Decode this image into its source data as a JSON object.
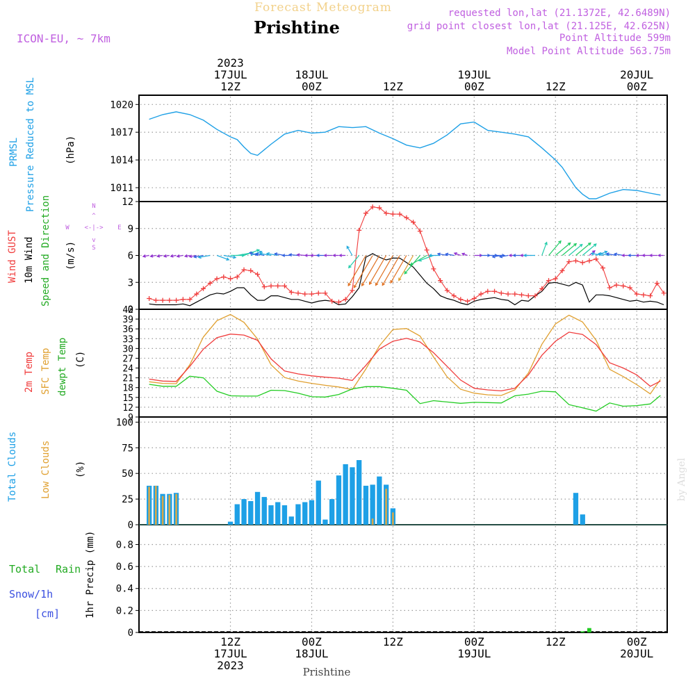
{
  "header": {
    "overline": "Forecast Meteogram",
    "location": "Prishtine",
    "model": "ICON-EU, ~ 7km",
    "requested": "requested lon,lat (21.1372E, 42.6489N)",
    "grid_point": "grid point closest lon,lat (21.125E, 42.625N)",
    "point_alt": "Point Altitude 599m",
    "model_alt": "Model Point Altitude 563.75m",
    "bottom_label": "Prishtine",
    "watermark": "by Angel"
  },
  "colors": {
    "pressure": "#1ea0e6",
    "gust": "#f03c3c",
    "wind": "#000000",
    "temp": "#f03c3c",
    "sfc": "#e0a030",
    "dew": "#22cc22",
    "total_cloud": "#1ea0e6",
    "low_cloud": "#d6a84a",
    "rain": "#22cc22",
    "snow": "#3a4fe0",
    "label_purple": "#c060e0",
    "grid": "#999999"
  },
  "time_axis": {
    "top": [
      {
        "h": 12,
        "lines": [
          "2023",
          "17JUL",
          "12Z"
        ]
      },
      {
        "h": 24,
        "lines": [
          "18JUL",
          "00Z"
        ]
      },
      {
        "h": 36,
        "lines": [
          "12Z"
        ]
      },
      {
        "h": 48,
        "lines": [
          "19JUL",
          "00Z"
        ]
      },
      {
        "h": 60,
        "lines": [
          "12Z"
        ]
      },
      {
        "h": 72,
        "lines": [
          "20JUL",
          "00Z"
        ]
      }
    ],
    "bottom": [
      {
        "h": 12,
        "lines": [
          "12Z",
          "17JUL",
          "2023"
        ]
      },
      {
        "h": 24,
        "lines": [
          "00Z",
          "18JUL"
        ]
      },
      {
        "h": 36,
        "lines": [
          "12Z"
        ]
      },
      {
        "h": 48,
        "lines": [
          "00Z",
          "19JUL"
        ]
      },
      {
        "h": 60,
        "lines": [
          "12Z"
        ]
      },
      {
        "h": 72,
        "lines": [
          "00Z",
          "20JUL"
        ]
      }
    ]
  },
  "panel_labels": {
    "pressure": [
      "PRMSL",
      "Pressure Reduced to MSL",
      "(hPa)"
    ],
    "wind": [
      "Wind GUST",
      "10m Wind",
      "Speed and Direction",
      "(m/s)"
    ],
    "compass": {
      "n": "N",
      "s": "S",
      "w": "W",
      "e": "E"
    },
    "temp": [
      "2m Temp",
      "SFC Temp",
      "dewpt Temp",
      "(C)"
    ],
    "cloud": [
      "Total Clouds",
      "Low Clouds",
      "(%)"
    ],
    "precip": [
      "Total",
      "Rain",
      "Snow/1h",
      "[cm]",
      "1hr Precip (mm)"
    ]
  },
  "chart_data": [
    {
      "type": "line",
      "title": "PRMSL Pressure Reduced to MSL",
      "ylabel": "hPa",
      "ylim": [
        1009.5,
        1021
      ],
      "yticks": [
        1011,
        1014,
        1017,
        1020
      ],
      "x_hours": [
        0,
        2,
        4,
        6,
        8,
        10,
        12,
        13,
        14,
        15,
        16,
        18,
        20,
        22,
        24,
        26,
        28,
        30,
        32,
        34,
        36,
        38,
        40,
        42,
        44,
        46,
        48,
        50,
        52,
        54,
        56,
        58,
        60,
        61,
        62,
        63,
        64,
        65,
        66,
        68,
        70,
        72,
        74,
        75.5
      ],
      "series": [
        {
          "name": "PRMSL",
          "values": [
            1018.4,
            1018.9,
            1019.2,
            1018.9,
            1018.3,
            1017.3,
            1016.5,
            1016.2,
            1015.4,
            1014.7,
            1014.5,
            1015.7,
            1016.8,
            1017.2,
            1016.9,
            1017.0,
            1017.6,
            1017.5,
            1017.6,
            1016.9,
            1016.3,
            1015.6,
            1015.3,
            1015.8,
            1016.7,
            1017.9,
            1018.1,
            1017.2,
            1017.0,
            1016.8,
            1016.5,
            1015.3,
            1014.0,
            1013.2,
            1012.1,
            1011.0,
            1010.3,
            1009.8,
            1009.8,
            1010.4,
            1010.8,
            1010.7,
            1010.4,
            1010.2
          ]
        }
      ]
    },
    {
      "type": "line",
      "title": "Wind GUST / 10m Wind Speed and Direction",
      "ylabel": "m/s",
      "ylim": [
        0,
        12
      ],
      "yticks": [
        0,
        3,
        6,
        9,
        12
      ],
      "x_hours": [
        0,
        1,
        2,
        3,
        4,
        5,
        6,
        7,
        8,
        9,
        10,
        11,
        12,
        13,
        14,
        15,
        16,
        17,
        18,
        19,
        20,
        21,
        22,
        23,
        24,
        25,
        26,
        27,
        28,
        29,
        30,
        31,
        32,
        33,
        34,
        35,
        36,
        37,
        38,
        39,
        40,
        41,
        42,
        43,
        44,
        45,
        46,
        47,
        48,
        49,
        50,
        51,
        52,
        53,
        54,
        55,
        56,
        57,
        58,
        59,
        60,
        61,
        62,
        63,
        64,
        65,
        66,
        67,
        68,
        69,
        70,
        71,
        72,
        73,
        74,
        75,
        76
      ],
      "series": [
        {
          "name": "Wind GUST",
          "values": [
            1.2,
            1.0,
            1.0,
            1.0,
            1.0,
            1.1,
            1.1,
            1.7,
            2.3,
            2.9,
            3.4,
            3.6,
            3.4,
            3.6,
            4.4,
            4.3,
            3.9,
            2.5,
            2.6,
            2.6,
            2.6,
            1.9,
            1.8,
            1.7,
            1.7,
            1.8,
            1.8,
            0.9,
            0.8,
            1.1,
            2.1,
            8.8,
            10.7,
            11.4,
            11.3,
            10.7,
            10.6,
            10.6,
            10.2,
            9.7,
            8.7,
            6.6,
            4.5,
            3.2,
            2.1,
            1.5,
            1.1,
            0.9,
            1.2,
            1.7,
            2.0,
            2.0,
            1.8,
            1.7,
            1.7,
            1.6,
            1.5,
            1.5,
            2.3,
            3.2,
            3.4,
            4.3,
            5.3,
            5.4,
            5.2,
            5.4,
            5.6,
            4.6,
            2.4,
            2.7,
            2.6,
            2.4,
            1.7,
            1.6,
            1.5,
            2.9,
            1.8
          ]
        },
        {
          "name": "10m Wind",
          "values": [
            0.6,
            0.5,
            0.5,
            0.5,
            0.5,
            0.6,
            0.4,
            0.8,
            1.2,
            1.6,
            1.8,
            1.7,
            2.0,
            2.4,
            2.4,
            1.6,
            1.0,
            1.0,
            1.5,
            1.5,
            1.3,
            1.1,
            1.1,
            0.9,
            0.7,
            0.9,
            1.0,
            0.9,
            0.5,
            0.6,
            1.4,
            2.4,
            5.8,
            6.2,
            5.8,
            5.5,
            5.7,
            5.7,
            5.2,
            4.7,
            3.8,
            2.9,
            2.3,
            1.5,
            1.2,
            1.0,
            0.7,
            0.5,
            0.9,
            1.1,
            1.2,
            1.3,
            1.1,
            1.0,
            0.5,
            1.0,
            0.9,
            1.5,
            2.0,
            2.9,
            3.0,
            2.8,
            2.6,
            3.0,
            2.7,
            0.8,
            1.6,
            1.6,
            1.5,
            1.3,
            1.1,
            0.9,
            1.0,
            0.8,
            0.9,
            0.8,
            0.5
          ]
        }
      ]
    },
    {
      "type": "line",
      "title": "2m Temp / SFC Temp / dewpt Temp",
      "ylabel": "C",
      "ylim": [
        9,
        42
      ],
      "yticks": [
        9,
        12,
        15,
        18,
        21,
        24,
        27,
        30,
        33,
        36,
        39,
        42
      ],
      "x_hours": [
        0,
        2,
        4,
        6,
        8,
        10,
        12,
        14,
        16,
        18,
        20,
        22,
        24,
        26,
        28,
        30,
        32,
        34,
        36,
        38,
        40,
        42,
        44,
        46,
        48,
        50,
        52,
        54,
        56,
        58,
        60,
        62,
        64,
        66,
        68,
        70,
        72,
        74,
        75.5
      ],
      "series": [
        {
          "name": "2m Temp",
          "values": [
            20.6,
            20.0,
            19.9,
            24.5,
            29.8,
            33.3,
            34.4,
            34.1,
            32.5,
            26.8,
            23.1,
            22.2,
            21.6,
            21.2,
            20.9,
            20.2,
            24.8,
            29.8,
            32.2,
            33.1,
            32.0,
            28.7,
            24.5,
            20.3,
            17.8,
            17.3,
            17.0,
            17.8,
            21.9,
            27.9,
            32.2,
            35.0,
            34.3,
            31.2,
            25.6,
            24.0,
            21.9,
            18.4,
            20.0
          ]
        },
        {
          "name": "SFC Temp",
          "values": [
            19.8,
            19.3,
            19.2,
            25.0,
            33.5,
            38.5,
            40.4,
            38.0,
            32.9,
            25.0,
            21.1,
            20.0,
            19.3,
            18.7,
            18.2,
            17.4,
            23.7,
            30.8,
            35.8,
            36.1,
            33.8,
            27.4,
            21.3,
            17.5,
            16.3,
            15.8,
            15.6,
            17.3,
            22.5,
            31.3,
            37.5,
            40.2,
            38.1,
            32.5,
            23.6,
            21.4,
            18.9,
            16.1,
            20.5
          ]
        },
        {
          "name": "dewpt Temp",
          "values": [
            19.0,
            18.4,
            18.4,
            21.5,
            21.0,
            16.9,
            15.5,
            15.4,
            15.4,
            17.2,
            17.1,
            16.3,
            15.2,
            15.1,
            15.9,
            17.6,
            18.3,
            18.3,
            17.8,
            17.2,
            13.1,
            14.0,
            13.6,
            13.2,
            13.5,
            13.4,
            13.3,
            15.5,
            16.0,
            16.9,
            16.7,
            12.8,
            11.8,
            10.8,
            13.3,
            12.3,
            12.5,
            13.0,
            15.6
          ]
        }
      ]
    },
    {
      "type": "bar",
      "title": "Total Clouds / Low Clouds",
      "ylabel": "%",
      "ylim": [
        0,
        105
      ],
      "yticks": [
        0,
        25,
        50,
        75,
        100
      ],
      "x_hours": [
        0,
        1,
        2,
        3,
        4,
        5,
        6,
        7,
        8,
        9,
        10,
        11,
        12,
        13,
        14,
        15,
        16,
        17,
        18,
        19,
        20,
        21,
        22,
        23,
        24,
        25,
        26,
        27,
        28,
        29,
        30,
        31,
        32,
        33,
        34,
        35,
        36,
        37,
        38,
        39,
        40,
        41,
        42,
        43,
        44,
        45,
        46,
        47,
        48,
        49,
        50,
        51,
        52,
        53,
        54,
        55,
        56,
        57,
        58,
        59,
        60,
        61,
        62,
        63,
        64,
        65,
        66,
        67,
        68,
        69,
        70,
        71,
        72,
        73,
        74,
        75
      ],
      "series": [
        {
          "name": "Total Clouds",
          "values": [
            38,
            38,
            30,
            30,
            31,
            0,
            0,
            0,
            0,
            0,
            0,
            0,
            3,
            20,
            25,
            23,
            32,
            27,
            19,
            22,
            19,
            8,
            20,
            22,
            24,
            43,
            5,
            25,
            48,
            59,
            56,
            63,
            38,
            39,
            47,
            39,
            16,
            0,
            0,
            0,
            0,
            0,
            0,
            0,
            0,
            0,
            0,
            0,
            0,
            0,
            0,
            0,
            0,
            0,
            0,
            0,
            0,
            0,
            0,
            0,
            0,
            0,
            0,
            31,
            10,
            0,
            0,
            0,
            0,
            0,
            0,
            0,
            0,
            0,
            0,
            0
          ]
        },
        {
          "name": "Low Clouds",
          "values": [
            37,
            38,
            28,
            29,
            30,
            0,
            0,
            0,
            0,
            0,
            0,
            0,
            0,
            0,
            0,
            0,
            0,
            0,
            0,
            0,
            0,
            0,
            0,
            0,
            0,
            0,
            0,
            0,
            0,
            0,
            0,
            0,
            0,
            6,
            0,
            35,
            12,
            0,
            0,
            0,
            0,
            0,
            0,
            0,
            0,
            0,
            0,
            0,
            0,
            0,
            0,
            0,
            0,
            0,
            0,
            0,
            0,
            0,
            0,
            0,
            0,
            0,
            0,
            0,
            0,
            0,
            0,
            0,
            0,
            0,
            0,
            0,
            0,
            0,
            0,
            0
          ]
        }
      ]
    },
    {
      "type": "bar",
      "title": "Total Rain / Snow 1hr Precip",
      "ylabel": "1hr Precip (mm)",
      "ylim": [
        0,
        0.98
      ],
      "yticks": [
        0,
        0.2,
        0.4,
        0.6,
        0.8
      ],
      "x_hours": [
        64,
        65
      ],
      "series": [
        {
          "name": "Total Rain",
          "values": [
            0.01,
            0.04
          ]
        },
        {
          "name": "Snow/1h",
          "values": [
            0,
            0
          ]
        }
      ]
    }
  ],
  "wind_arrows": {
    "x_hours": [
      0,
      1,
      2,
      3,
      4,
      5,
      6,
      7,
      8,
      9,
      10,
      11,
      12,
      13,
      14,
      15,
      16,
      17,
      18,
      19,
      20,
      21,
      22,
      23,
      24,
      25,
      26,
      27,
      28,
      29,
      30,
      31,
      32,
      33,
      34,
      35,
      36,
      37,
      38,
      39,
      40,
      41,
      42,
      43,
      44,
      45,
      46,
      47,
      48,
      49,
      50,
      51,
      52,
      53,
      54,
      55,
      56,
      57,
      58,
      59,
      60,
      61,
      62,
      63,
      64,
      65,
      66,
      67,
      68,
      69,
      70,
      71,
      72,
      73,
      74,
      75,
      76
    ],
    "from_deg": [
      80,
      80,
      80,
      80,
      80,
      80,
      80,
      80,
      80,
      80,
      290,
      280,
      270,
      260,
      250,
      250,
      110,
      100,
      100,
      100,
      100,
      90,
      95,
      95,
      90,
      90,
      90,
      90,
      90,
      90,
      150,
      40,
      30,
      30,
      30,
      30,
      30,
      30,
      30,
      30,
      40,
      60,
      70,
      90,
      100,
      100,
      110,
      110,
      270,
      270,
      270,
      270,
      80,
      80,
      90,
      90,
      90,
      90,
      200,
      220,
      230,
      230,
      230,
      230,
      230,
      230,
      250,
      100,
      100,
      100,
      100,
      90,
      90,
      90,
      90,
      90,
      90
    ],
    "speed": [
      0.6,
      0.5,
      0.5,
      0.5,
      0.5,
      0.6,
      0.4,
      0.8,
      1.2,
      1.6,
      1.8,
      1.7,
      2.0,
      2.4,
      2.4,
      1.6,
      1.0,
      1.0,
      1.5,
      1.5,
      1.3,
      1.1,
      1.1,
      0.9,
      0.7,
      0.9,
      1.0,
      0.9,
      0.5,
      0.6,
      1.4,
      2.4,
      5.8,
      6.2,
      5.8,
      5.5,
      5.7,
      5.7,
      5.2,
      4.7,
      3.8,
      2.9,
      2.3,
      1.5,
      1.2,
      1.0,
      0.7,
      0.5,
      0.9,
      1.1,
      1.2,
      1.3,
      1.1,
      1.0,
      0.5,
      1.0,
      0.9,
      1.5,
      2.0,
      2.9,
      3.0,
      2.8,
      2.6,
      3.0,
      2.7,
      0.8,
      1.6,
      1.6,
      1.5,
      1.3,
      1.1,
      0.9,
      1.0,
      0.8,
      0.9,
      0.8,
      0.5
    ]
  }
}
